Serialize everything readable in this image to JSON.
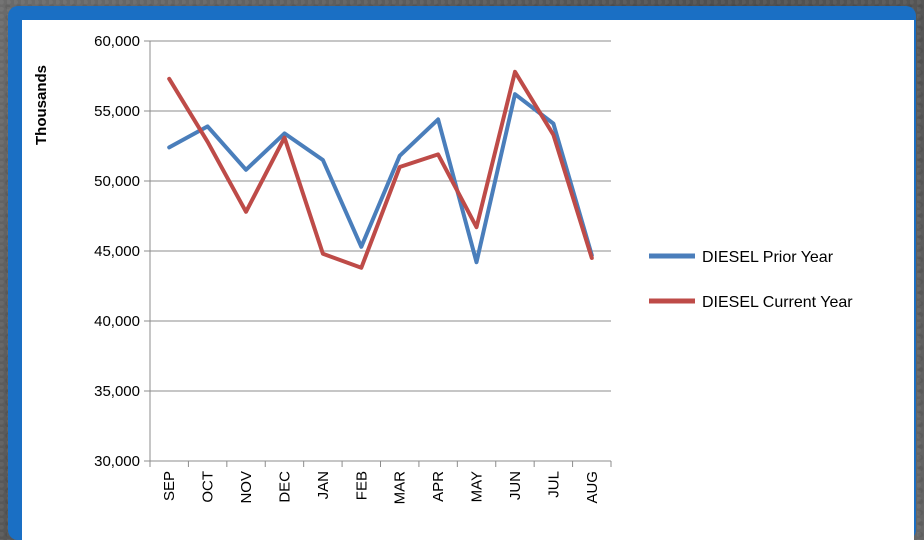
{
  "chart_data": {
    "type": "line",
    "ylabel": "Thousands",
    "xlabel": "",
    "ylim": [
      30000,
      60000
    ],
    "yticks": [
      30000,
      35000,
      40000,
      45000,
      50000,
      55000,
      60000
    ],
    "ytick_labels": [
      "30,000",
      "35,000",
      "40,000",
      "45,000",
      "50,000",
      "55,000",
      "60,000"
    ],
    "categories": [
      "SEP",
      "OCT",
      "NOV",
      "DEC",
      "JAN",
      "FEB",
      "MAR",
      "APR",
      "MAY",
      "JUN",
      "JUL",
      "AUG"
    ],
    "grid": "horizontal",
    "legend": "right",
    "series": [
      {
        "name": "DIESEL Prior Year",
        "color": "#4a7ebb",
        "values": [
          52400,
          53900,
          50800,
          53400,
          51500,
          45300,
          51800,
          54400,
          44200,
          56200,
          54100,
          44700
        ]
      },
      {
        "name": "DIESEL Current Year",
        "color": "#be4b48",
        "values": [
          57300,
          52800,
          47800,
          53100,
          44800,
          43800,
          51000,
          51900,
          46700,
          57800,
          53300,
          44500
        ]
      }
    ]
  }
}
